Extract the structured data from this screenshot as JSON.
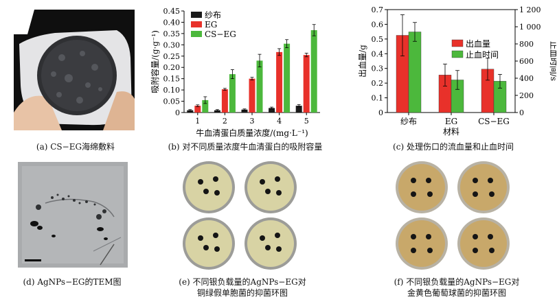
{
  "captions": {
    "a": "(a)  CS−EG海绵敷料",
    "b": "(b)  对不同质量浓度牛血清蛋白的吸附容量",
    "c": "(c)  处理伤口的流血量和止血时间",
    "d": "(d)  AgNPs−EG的TEM图",
    "e1": "(e)   不同银负载量的AgNPs−EG对",
    "e2": "铜绿假单胞菌的抑菌环图",
    "f1": "(f)   不同银负载量的AgNPs−EG对",
    "f2": "金黄色葡萄球菌的抑菌环图"
  },
  "colors": {
    "black": "#1a1a1a",
    "red": "#e8312a",
    "green": "#4cb83c",
    "dish_e": "#d8d3a4",
    "dish_f": "#c8a86a"
  },
  "chart_data": [
    {
      "type": "bar",
      "categories": [
        "1",
        "2",
        "3",
        "4",
        "5"
      ],
      "series": [
        {
          "name": "纱布",
          "color": "#1a1a1a",
          "values": [
            0.01,
            0.01,
            0.013,
            0.02,
            0.03
          ],
          "errors": [
            0.003,
            0.003,
            0.003,
            0.004,
            0.005
          ]
        },
        {
          "name": "EG",
          "color": "#e8312a",
          "values": [
            0.03,
            0.103,
            0.15,
            0.268,
            0.255
          ],
          "errors": [
            0.004,
            0.004,
            0.006,
            0.015,
            0.008
          ]
        },
        {
          "name": "CS−EG",
          "color": "#4cb83c",
          "values": [
            0.055,
            0.17,
            0.23,
            0.305,
            0.365
          ],
          "errors": [
            0.015,
            0.02,
            0.028,
            0.018,
            0.025
          ]
        }
      ],
      "xlabel": "牛血清蛋白质量浓度/(mg·L⁻¹)",
      "ylabel": "吸附容量/(g·g⁻¹)",
      "ylim": [
        0,
        0.45
      ],
      "yticks": [
        "0",
        "0.05",
        "0.10",
        "0.15",
        "0.20",
        "0.25",
        "0.30",
        "0.35",
        "0.40",
        "0.45"
      ],
      "legend": "top-left"
    },
    {
      "type": "bar",
      "categories": [
        "纱布",
        "EG",
        "CS−EG"
      ],
      "series": [
        {
          "name": "出血量",
          "color": "#e8312a",
          "axis": "left",
          "values": [
            0.525,
            0.255,
            0.295
          ],
          "errors": [
            0.14,
            0.075,
            0.075
          ]
        },
        {
          "name": "止血时间",
          "color": "#4cb83c",
          "axis": "right",
          "values": [
            940,
            380,
            365
          ],
          "errors": [
            110,
            110,
            80
          ]
        }
      ],
      "xlabel": "材料",
      "ylabel": "出血量/g",
      "y2label": "止血时间/s",
      "ylim": [
        0,
        0.7
      ],
      "y2lim": [
        0,
        1200
      ],
      "yticks": [
        "0",
        "0.1",
        "0.2",
        "0.3",
        "0.4",
        "0.5",
        "0.6",
        "0.7"
      ],
      "y2ticks": [
        "0",
        "200",
        "400",
        "600",
        "800",
        "1 000",
        "1 200"
      ],
      "legend": "top-right"
    }
  ]
}
